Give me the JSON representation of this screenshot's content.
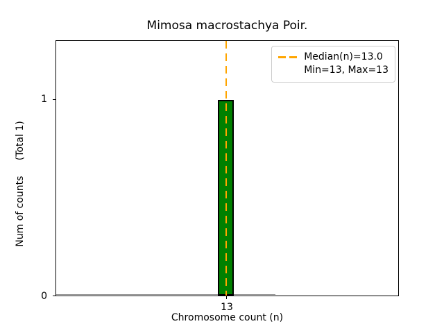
{
  "chart_data": {
    "type": "bar",
    "subtype": "histogram",
    "title": "Mimosa macrostachya Poir.",
    "xlabel": "Chromosome count (n)",
    "ylabel": "Num of counts     (Total 1)",
    "x": [
      13
    ],
    "values": [
      1
    ],
    "total_counts": 1,
    "median": 13.0,
    "min": 13,
    "max": 13,
    "xticks": [
      "13"
    ],
    "yticks": [
      "0",
      "1"
    ],
    "ylim": [
      0,
      1.3
    ],
    "grid": false,
    "legend": {
      "position": "upper right",
      "entries": [
        {
          "label": "Median(n)=13.0",
          "marker": "orange-dashed-line"
        },
        {
          "label": "Min=13, Max=13",
          "marker": "none"
        }
      ]
    },
    "colors": {
      "bar_fill": "#008000",
      "bar_edge": "#000000",
      "median_line": "#FFA500",
      "axes_edge": "#000000",
      "zero_bins_baseline": "#999999",
      "background": "#FFFFFF"
    }
  }
}
